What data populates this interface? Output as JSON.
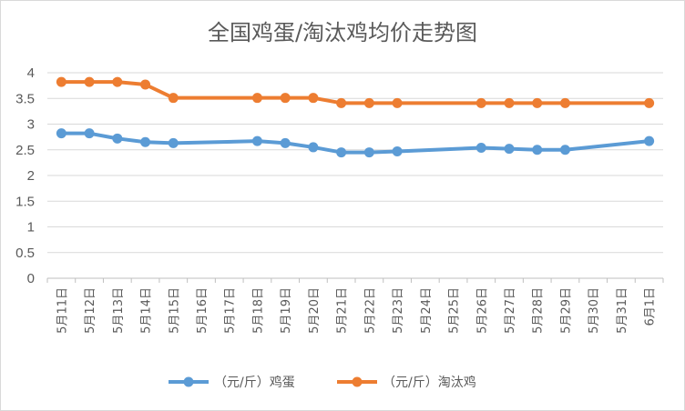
{
  "chart_data": {
    "type": "line",
    "title": "全国鸡蛋/淘汰鸡均价走势图",
    "categories": [
      "5月11日",
      "5月12日",
      "5月13日",
      "5月14日",
      "5月15日",
      "5月16日",
      "5月17日",
      "5月18日",
      "5月19日",
      "5月20日",
      "5月21日",
      "5月22日",
      "5月23日",
      "5月24日",
      "5月25日",
      "5月26日",
      "5月27日",
      "5月28日",
      "5月29日",
      "5月30日",
      "5月31日",
      "6月1日"
    ],
    "ylim": [
      0,
      4
    ],
    "yticks": [
      "0",
      "0.5",
      "1",
      "1.5",
      "2",
      "2.5",
      "3",
      "3.5",
      "4"
    ],
    "grid": true,
    "legend_position": "bottom",
    "series": [
      {
        "name": "（元/斤）鸡蛋",
        "color": "#5b9bd5",
        "values": [
          2.82,
          2.82,
          2.72,
          2.65,
          2.63,
          null,
          null,
          2.67,
          2.63,
          2.55,
          2.45,
          2.45,
          2.47,
          null,
          null,
          2.54,
          2.52,
          2.5,
          2.5,
          null,
          null,
          2.67
        ]
      },
      {
        "name": "（元/斤）淘汰鸡",
        "color": "#ed7d31",
        "values": [
          3.82,
          3.82,
          3.82,
          3.77,
          3.51,
          null,
          null,
          3.51,
          3.51,
          3.51,
          3.41,
          3.41,
          3.41,
          null,
          null,
          3.41,
          3.41,
          3.41,
          3.41,
          null,
          null,
          3.41
        ]
      }
    ]
  }
}
